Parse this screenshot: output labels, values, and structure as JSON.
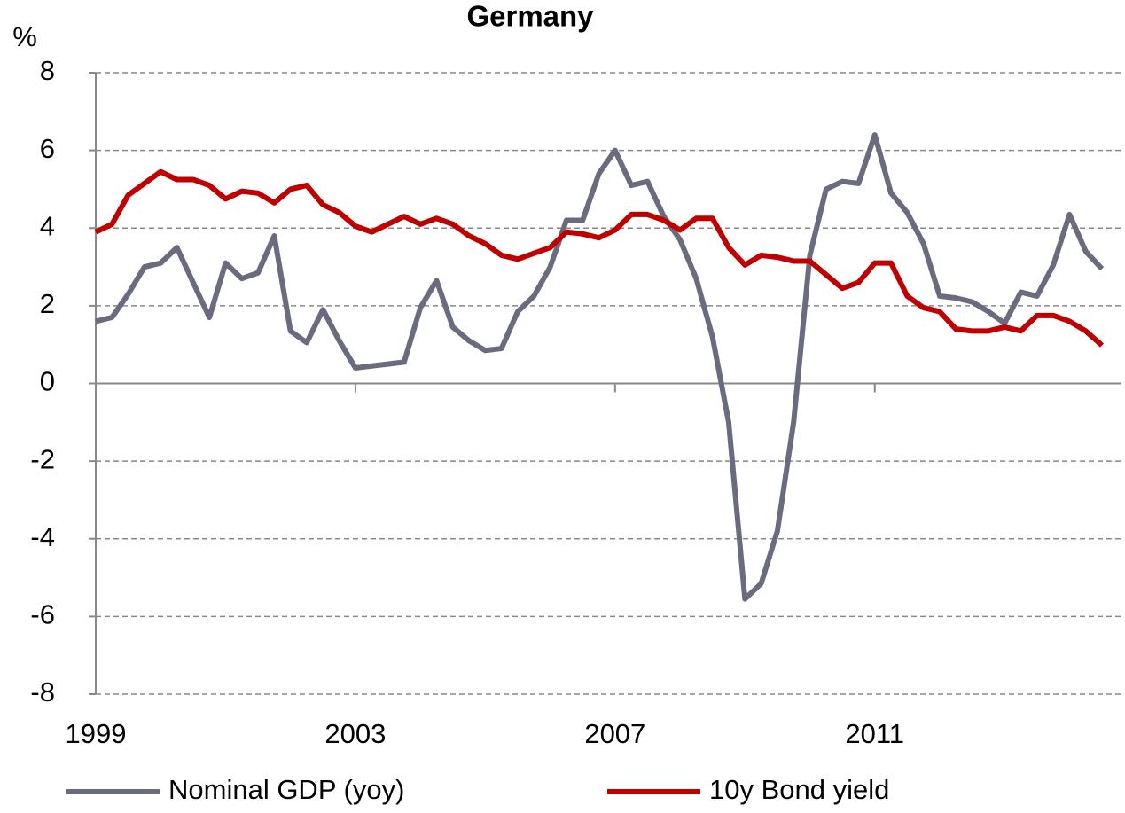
{
  "chart_data": {
    "type": "line",
    "title": "Germany",
    "y_label": "%",
    "x": [
      1999,
      1999.25,
      1999.5,
      1999.75,
      2000,
      2000.25,
      2000.5,
      2000.75,
      2001,
      2001.25,
      2001.5,
      2001.75,
      2002,
      2002.25,
      2002.5,
      2002.75,
      2003,
      2003.25,
      2003.5,
      2003.75,
      2004,
      2004.25,
      2004.5,
      2004.75,
      2005,
      2005.25,
      2005.5,
      2005.75,
      2006,
      2006.25,
      2006.5,
      2006.75,
      2007,
      2007.25,
      2007.5,
      2007.75,
      2008,
      2008.25,
      2008.5,
      2008.75,
      2009,
      2009.25,
      2009.5,
      2009.75,
      2010,
      2010.25,
      2010.5,
      2010.75,
      2011,
      2011.25,
      2011.5,
      2011.75,
      2012,
      2012.25,
      2012.5,
      2012.75,
      2013,
      2013.25,
      2013.5,
      2013.75,
      2014,
      2014.25,
      2014.5
    ],
    "series": [
      {
        "name": "Nominal GDP (yoy)",
        "color": "#6b6b80",
        "values": [
          1.6,
          1.7,
          2.3,
          3.0,
          3.1,
          3.5,
          2.6,
          1.7,
          3.1,
          2.7,
          2.85,
          3.8,
          1.35,
          1.05,
          1.9,
          1.1,
          0.4,
          0.45,
          0.5,
          0.55,
          1.95,
          2.65,
          1.45,
          1.1,
          0.85,
          0.9,
          1.85,
          2.25,
          3.0,
          4.2,
          4.2,
          5.4,
          6.0,
          5.1,
          5.2,
          4.3,
          3.7,
          2.7,
          1.2,
          -1.0,
          -5.55,
          -5.15,
          -3.8,
          -1.0,
          3.3,
          5.0,
          5.2,
          5.15,
          6.4,
          4.9,
          4.4,
          3.6,
          2.25,
          2.2,
          2.1,
          1.85,
          1.55,
          2.35,
          2.25,
          3.05,
          4.35,
          3.4,
          2.95
        ]
      },
      {
        "name": "10y Bond yield",
        "color": "#c00000",
        "values": [
          3.9,
          4.1,
          4.85,
          5.15,
          5.45,
          5.25,
          5.25,
          5.1,
          4.75,
          4.95,
          4.9,
          4.65,
          5.0,
          5.1,
          4.6,
          4.4,
          4.05,
          3.9,
          4.1,
          4.3,
          4.1,
          4.25,
          4.1,
          3.8,
          3.6,
          3.3,
          3.2,
          3.35,
          3.5,
          3.9,
          3.85,
          3.75,
          3.95,
          4.35,
          4.35,
          4.2,
          3.95,
          4.25,
          4.25,
          3.5,
          3.05,
          3.3,
          3.25,
          3.15,
          3.15,
          2.8,
          2.45,
          2.6,
          3.1,
          3.1,
          2.25,
          1.95,
          1.85,
          1.4,
          1.35,
          1.35,
          1.45,
          1.35,
          1.75,
          1.75,
          1.6,
          1.35,
          0.98
        ]
      }
    ],
    "xlim": [
      1999,
      2014.8
    ],
    "xticks": [
      1999,
      2003,
      2007,
      2011
    ],
    "ylim": [
      -8,
      8
    ],
    "yticks": [
      -8,
      -6,
      -4,
      -2,
      0,
      2,
      4,
      6,
      8
    ],
    "grid": true,
    "legend": "bottom"
  }
}
